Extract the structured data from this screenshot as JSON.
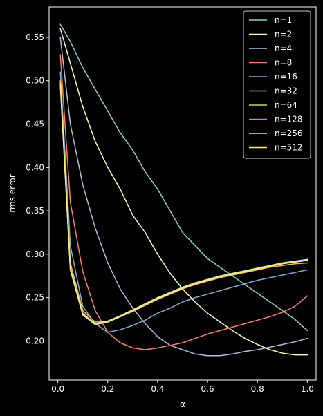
{
  "chart_data": {
    "type": "line",
    "title": "",
    "xlabel": "α",
    "ylabel": "rms error",
    "xlim": [
      -0.035,
      1.035
    ],
    "ylim": [
      0.155,
      0.585
    ],
    "xticks": [
      0.0,
      0.2,
      0.4,
      0.6,
      0.8,
      1.0
    ],
    "xtick_labels": [
      "0.0",
      "0.2",
      "0.4",
      "0.6",
      "0.8",
      "1.0"
    ],
    "yticks": [
      0.2,
      0.25,
      0.3,
      0.35,
      0.4,
      0.45,
      0.5,
      0.55
    ],
    "ytick_labels": [
      "0.20",
      "0.25",
      "0.30",
      "0.35",
      "0.40",
      "0.45",
      "0.50",
      "0.55"
    ],
    "grid": false,
    "legend_position": "top-right",
    "background": "#000000",
    "foreground": "#ffffff",
    "x": [
      0.01,
      0.05,
      0.1,
      0.15,
      0.2,
      0.25,
      0.3,
      0.35,
      0.4,
      0.45,
      0.5,
      0.55,
      0.6,
      0.65,
      0.7,
      0.75,
      0.8,
      0.85,
      0.9,
      0.95,
      1.0
    ],
    "series": [
      {
        "name": "n=1",
        "color": "#8dd3c7",
        "values": [
          0.565,
          0.545,
          0.515,
          0.49,
          0.465,
          0.44,
          0.42,
          0.395,
          0.375,
          0.35,
          0.325,
          0.31,
          0.295,
          0.285,
          0.275,
          0.265,
          0.255,
          0.245,
          0.235,
          0.225,
          0.212
        ]
      },
      {
        "name": "n=2",
        "color": "#feffb3",
        "values": [
          0.56,
          0.52,
          0.47,
          0.43,
          0.4,
          0.375,
          0.345,
          0.325,
          0.3,
          0.278,
          0.26,
          0.245,
          0.232,
          0.222,
          0.212,
          0.203,
          0.196,
          0.19,
          0.186,
          0.184,
          0.184
        ]
      },
      {
        "name": "n=4",
        "color": "#bfbbd9",
        "values": [
          0.55,
          0.45,
          0.38,
          0.33,
          0.29,
          0.26,
          0.238,
          0.22,
          0.205,
          0.195,
          0.19,
          0.185,
          0.183,
          0.183,
          0.185,
          0.188,
          0.19,
          0.193,
          0.196,
          0.199,
          0.203
        ]
      },
      {
        "name": "n=8",
        "color": "#fa8174",
        "values": [
          0.53,
          0.36,
          0.28,
          0.235,
          0.21,
          0.198,
          0.192,
          0.19,
          0.192,
          0.195,
          0.198,
          0.203,
          0.208,
          0.212,
          0.216,
          0.22,
          0.224,
          0.228,
          0.233,
          0.24,
          0.252
        ]
      },
      {
        "name": "n=16",
        "color": "#81b1d2",
        "values": [
          0.51,
          0.31,
          0.24,
          0.22,
          0.21,
          0.213,
          0.218,
          0.224,
          0.232,
          0.238,
          0.245,
          0.25,
          0.254,
          0.258,
          0.262,
          0.266,
          0.27,
          0.273,
          0.276,
          0.279,
          0.282
        ]
      },
      {
        "name": "n=32",
        "color": "#fdb462",
        "values": [
          0.5,
          0.29,
          0.235,
          0.222,
          0.222,
          0.228,
          0.234,
          0.241,
          0.248,
          0.254,
          0.26,
          0.265,
          0.269,
          0.273,
          0.276,
          0.279,
          0.282,
          0.285,
          0.287,
          0.289,
          0.29
        ]
      },
      {
        "name": "n=64",
        "color": "#b3de69",
        "values": [
          0.498,
          0.285,
          0.232,
          0.22,
          0.223,
          0.229,
          0.236,
          0.243,
          0.25,
          0.256,
          0.262,
          0.267,
          0.271,
          0.275,
          0.278,
          0.281,
          0.284,
          0.287,
          0.29,
          0.292,
          0.294
        ]
      },
      {
        "name": "n=128",
        "color": "#bc82bd",
        "values": [
          0.495,
          0.282,
          0.23,
          0.219,
          0.222,
          0.228,
          0.235,
          0.242,
          0.249,
          0.255,
          0.261,
          0.266,
          0.27,
          0.274,
          0.277,
          0.28,
          0.283,
          0.286,
          0.289,
          0.291,
          0.293
        ]
      },
      {
        "name": "n=256",
        "color": "#ccebc4",
        "values": [
          0.497,
          0.283,
          0.231,
          0.22,
          0.223,
          0.229,
          0.236,
          0.243,
          0.25,
          0.256,
          0.262,
          0.267,
          0.271,
          0.275,
          0.278,
          0.281,
          0.284,
          0.287,
          0.29,
          0.292,
          0.294
        ]
      },
      {
        "name": "n=512",
        "color": "#ffed6f",
        "values": [
          0.496,
          0.282,
          0.23,
          0.219,
          0.222,
          0.228,
          0.235,
          0.242,
          0.249,
          0.255,
          0.261,
          0.266,
          0.27,
          0.274,
          0.277,
          0.28,
          0.283,
          0.286,
          0.289,
          0.291,
          0.293
        ]
      }
    ]
  }
}
